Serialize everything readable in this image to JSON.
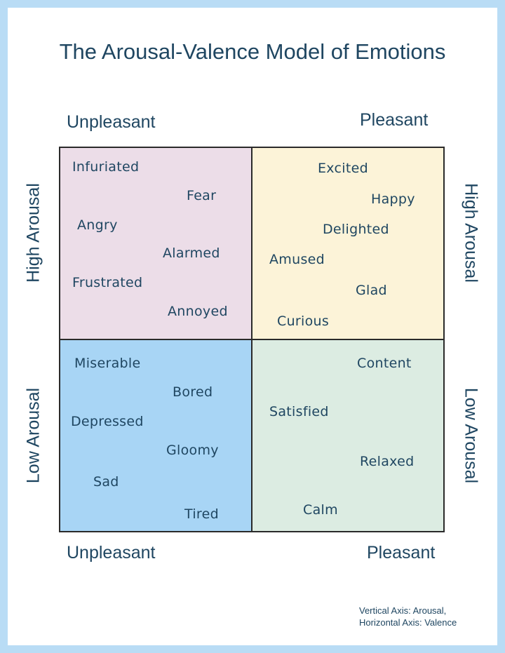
{
  "title": "The Arousal-Valence Model of Emotions",
  "labels": {
    "top_left": "Unpleasant",
    "top_right": "Pleasant",
    "bottom_left": "Unpleasant",
    "bottom_right": "Pleasant",
    "left_high": "High Arousal",
    "left_low": "Low Arousal",
    "right_high": "High Arousal",
    "right_low": "Low Arousal"
  },
  "quadrants": {
    "high_unpleasant": [
      "Infuriated",
      "Fear",
      "Angry",
      "Alarmed",
      "Frustrated",
      "Annoyed"
    ],
    "high_pleasant": [
      "Excited",
      "Happy",
      "Delighted",
      "Amused",
      "Glad",
      "Curious"
    ],
    "low_unpleasant": [
      "Miserable",
      "Bored",
      "Depressed",
      "Gloomy",
      "Sad",
      "Tired"
    ],
    "low_pleasant": [
      "Content",
      "Satisfied",
      "Relaxed",
      "Calm"
    ]
  },
  "colors": {
    "high_unpleasant": "#ecdde8",
    "high_pleasant": "#fcf3d8",
    "low_unpleasant": "#a8d5f5",
    "low_pleasant": "#dcece2"
  },
  "note": {
    "line1": "Vertical Axis: Arousal,",
    "line2": "Horizontal Axis: Valence"
  }
}
